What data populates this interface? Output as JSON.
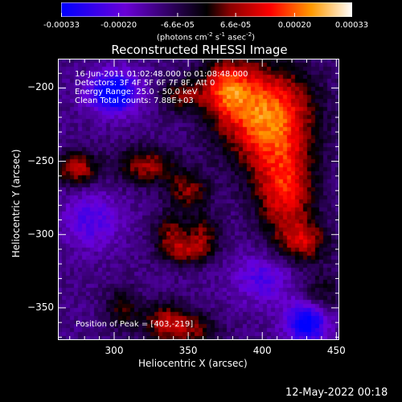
{
  "chart_data": {
    "type": "heatmap",
    "title": "Reconstructed RHESSI Image",
    "xlabel": "Heliocentric X (arcsec)",
    "ylabel": "Heliocentric Y (arcsec)",
    "xlim": [
      262,
      452
    ],
    "ylim": [
      -372,
      -180
    ],
    "xticks": [
      300,
      350,
      400,
      450
    ],
    "yticks": [
      -200,
      -250,
      -300,
      -350
    ],
    "colorbar": {
      "ticks": [
        "-0.00033",
        "-0.00020",
        "-6.6e-05",
        "6.6e-05",
        "0.00020",
        "0.00033"
      ],
      "values": [
        -0.00033,
        -0.0002,
        -6.6e-05,
        6.6e-05,
        0.0002,
        0.00033
      ],
      "range": [
        -0.00033,
        0.00033
      ],
      "units_prefix": "(photons cm",
      "units_exp1": "-2",
      "units_mid": " s",
      "units_exp2": "-1",
      "units_mid2": " asec",
      "units_exp3": "-2",
      "units_suffix": ")",
      "colors": [
        "#0000ff",
        "#6a00d8",
        "#000000",
        "#8a0000",
        "#ff0000",
        "#ff9a00",
        "#ffffff"
      ]
    },
    "annotations": [
      "16-Jun-2011 01:02:48.000 to 01:08:48.000",
      "Detectors: 3F 4F 5F 6F 7F 8F, Att 0",
      "Energy Range: 25.0 - 50.0 keV",
      "Clean    Total counts: 7.88E+03"
    ],
    "peak_label": "Position of Peak = [403,-219]",
    "peak": [
      403,
      -219
    ],
    "sources": [
      {
        "x": 403,
        "y": -219,
        "amp": 0.00033,
        "sx": 22,
        "sy": 24
      },
      {
        "x": 375,
        "y": -200,
        "amp": 0.00022,
        "sx": 12,
        "sy": 14
      },
      {
        "x": 415,
        "y": -270,
        "amp": 0.00024,
        "sx": 14,
        "sy": 22
      },
      {
        "x": 428,
        "y": -305,
        "amp": 0.00018,
        "sx": 12,
        "sy": 10
      },
      {
        "x": 275,
        "y": -255,
        "amp": 0.00021,
        "sx": 10,
        "sy": 8
      },
      {
        "x": 322,
        "y": -253,
        "amp": 0.00018,
        "sx": 14,
        "sy": 9
      },
      {
        "x": 350,
        "y": -270,
        "amp": 0.00016,
        "sx": 10,
        "sy": 9
      },
      {
        "x": 338,
        "y": -300,
        "amp": 0.00016,
        "sx": 8,
        "sy": 10
      },
      {
        "x": 360,
        "y": -300,
        "amp": 0.00015,
        "sx": 8,
        "sy": 10
      },
      {
        "x": 350,
        "y": -312,
        "amp": 0.00014,
        "sx": 10,
        "sy": 6
      },
      {
        "x": 335,
        "y": -360,
        "amp": 0.00018,
        "sx": 12,
        "sy": 10
      },
      {
        "x": 355,
        "y": -365,
        "amp": 0.00012,
        "sx": 12,
        "sy": 8
      },
      {
        "x": 305,
        "y": -350,
        "amp": 0.00012,
        "sx": 8,
        "sy": 10
      },
      {
        "x": 345,
        "y": -205,
        "amp": 0.00014,
        "sx": 10,
        "sy": 8
      },
      {
        "x": 440,
        "y": -340,
        "amp": 0.0001,
        "sx": 10,
        "sy": 10
      },
      {
        "x": 300,
        "y": -203,
        "amp": -0.00026,
        "sx": 12,
        "sy": 10
      },
      {
        "x": 430,
        "y": -360,
        "amp": -0.00024,
        "sx": 10,
        "sy": 10
      },
      {
        "x": 285,
        "y": -290,
        "amp": -0.00012,
        "sx": 14,
        "sy": 14
      },
      {
        "x": 400,
        "y": -330,
        "amp": -0.00012,
        "sx": 14,
        "sy": 12
      }
    ],
    "background": -0.00011
  },
  "timestamp": "12-May-2022 00:18"
}
